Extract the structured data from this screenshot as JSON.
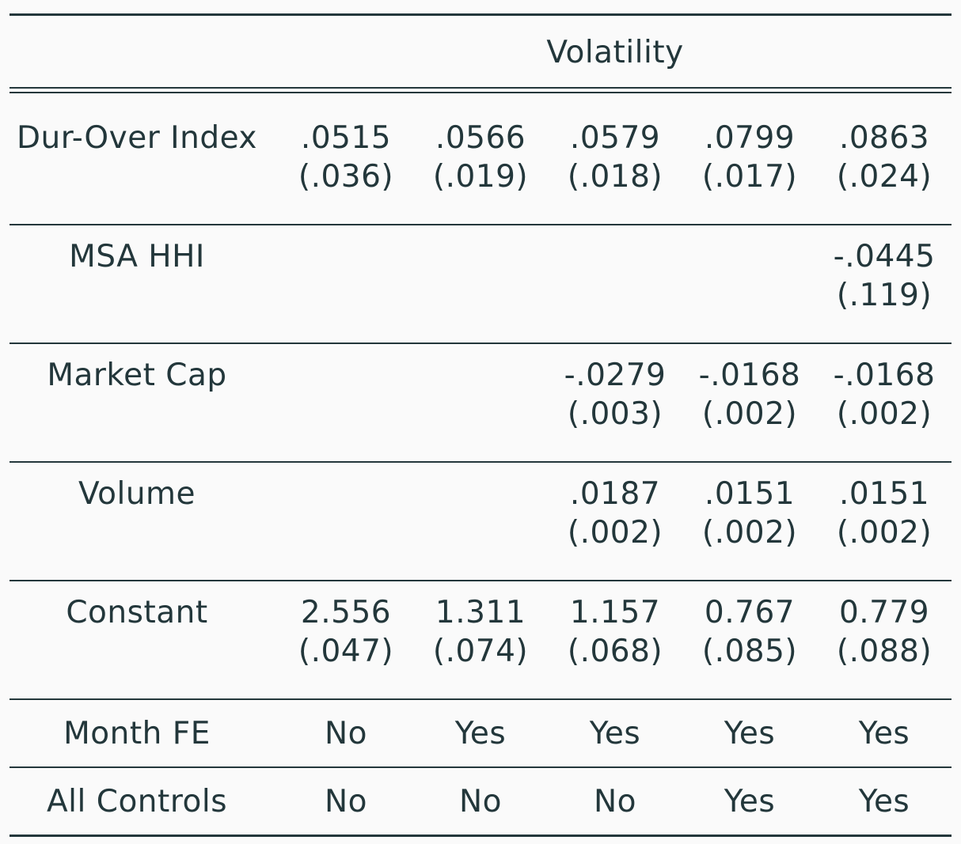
{
  "table": {
    "header": "Volatility",
    "rows": [
      {
        "label": "Dur-Over Index",
        "coef": [
          ".0515",
          ".0566",
          ".0579",
          ".0799",
          ".0863"
        ],
        "se": [
          "(.036)",
          "(.019)",
          "(.018)",
          "(.017)",
          "(.024)"
        ]
      },
      {
        "label": "MSA HHI",
        "coef": [
          "",
          "",
          "",
          "",
          "-.0445"
        ],
        "se": [
          "",
          "",
          "",
          "",
          "(.119)"
        ]
      },
      {
        "label": "Market Cap",
        "coef": [
          "",
          "",
          "-.0279",
          "-.0168",
          "-.0168"
        ],
        "se": [
          "",
          "",
          "(.003)",
          "(.002)",
          "(.002)"
        ]
      },
      {
        "label": "Volume",
        "coef": [
          "",
          "",
          ".0187",
          ".0151",
          ".0151"
        ],
        "se": [
          "",
          "",
          "(.002)",
          "(.002)",
          "(.002)"
        ]
      },
      {
        "label": "Constant",
        "coef": [
          "2.556",
          "1.311",
          "1.157",
          "0.767",
          "0.779"
        ],
        "se": [
          "(.047)",
          "(.074)",
          "(.068)",
          "(.085)",
          "(.088)"
        ]
      }
    ],
    "indicators": [
      {
        "label": "Month FE",
        "values": [
          "No",
          "Yes",
          "Yes",
          "Yes",
          "Yes"
        ]
      },
      {
        "label": "All Controls",
        "values": [
          "No",
          "No",
          "No",
          "Yes",
          "Yes"
        ]
      }
    ]
  }
}
